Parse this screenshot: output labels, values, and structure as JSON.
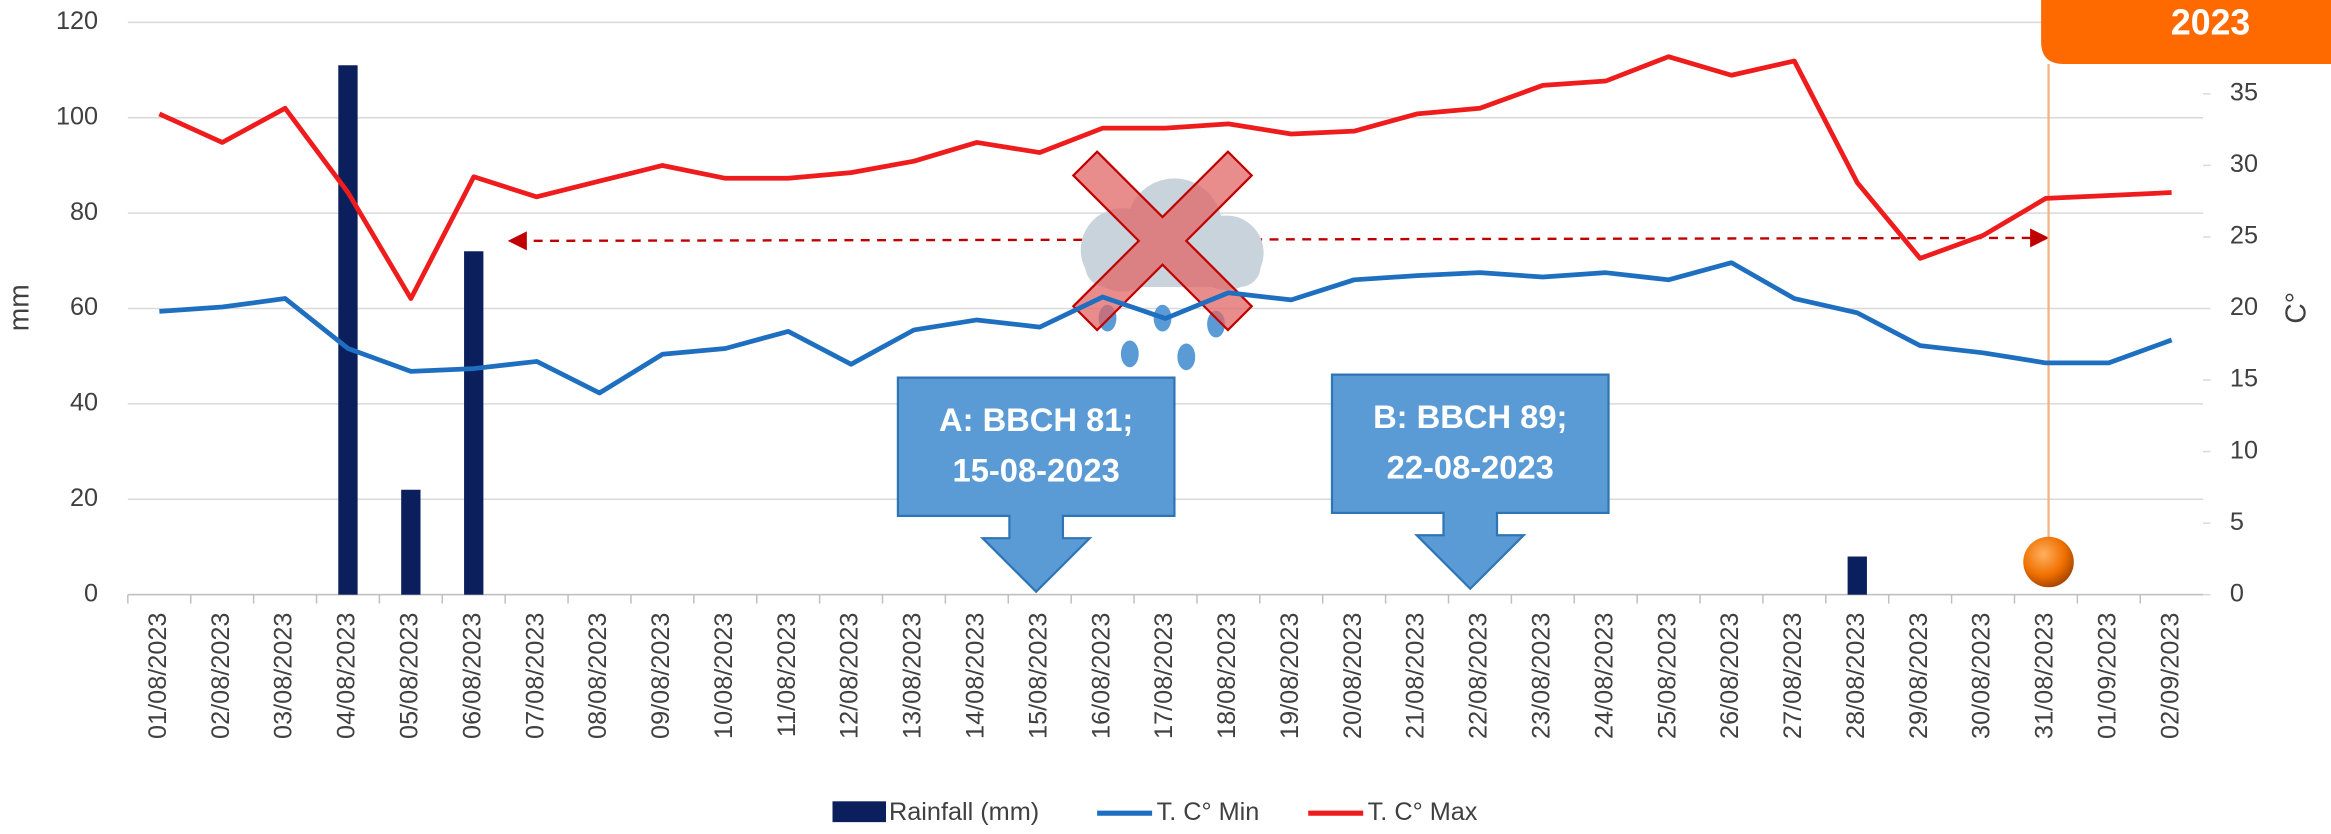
{
  "chart_data": {
    "type": "combo",
    "y_label": "mm",
    "y2_label": "C°",
    "categories": [
      "01/08/2023",
      "02/08/2023",
      "03/08/2023",
      "04/08/2023",
      "05/08/2023",
      "06/08/2023",
      "07/08/2023",
      "08/08/2023",
      "09/08/2023",
      "10/08/2023",
      "11/08/2023",
      "12/08/2023",
      "13/08/2023",
      "14/08/2023",
      "15/08/2023",
      "16/08/2023",
      "17/08/2023",
      "18/08/2023",
      "19/08/2023",
      "20/08/2023",
      "21/08/2023",
      "22/08/2023",
      "23/08/2023",
      "24/08/2023",
      "25/08/2023",
      "26/08/2023",
      "27/08/2023",
      "28/08/2023",
      "29/08/2023",
      "30/08/2023",
      "31/08/2023",
      "01/09/2023",
      "02/09/2023"
    ],
    "series": [
      {
        "name": "Rainfall (mm)",
        "type": "bar",
        "color": "#0b1f5c",
        "values": [
          0,
          0,
          0,
          111,
          22,
          72,
          0,
          0,
          0,
          0,
          0,
          0,
          0,
          0,
          0,
          0,
          0,
          0,
          0,
          0,
          0,
          0,
          0,
          0,
          0,
          0,
          0,
          8,
          0,
          0,
          0,
          0,
          0
        ]
      },
      {
        "name": "T. C° Min",
        "type": "line",
        "axis": "y2",
        "color": "#1f6fc0",
        "values": [
          19.8,
          20.1,
          20.7,
          17.2,
          15.6,
          15.8,
          16.3,
          14.1,
          16.8,
          17.2,
          18.4,
          16.1,
          18.5,
          19.2,
          18.7,
          20.8,
          19.3,
          21.1,
          20.6,
          22,
          22.3,
          22.5,
          22.2,
          22.5,
          22,
          23.2,
          20.7,
          19.7,
          17.4,
          16.9,
          16.2,
          16.2,
          17.8
        ]
      },
      {
        "name": "T. C° Max",
        "type": "line",
        "axis": "y2",
        "color": "#ee1c1c",
        "values": [
          33.6,
          31.6,
          34,
          28.1,
          20.7,
          29.2,
          27.8,
          28.9,
          30,
          29.1,
          29.1,
          29.5,
          30.3,
          31.6,
          30.9,
          32.6,
          32.6,
          32.9,
          32.2,
          32.4,
          33.6,
          34,
          35.6,
          35.9,
          37.6,
          36.3,
          37.3,
          28.8,
          23.5,
          25.1,
          27.7,
          27.9,
          28.1
        ]
      }
    ],
    "ylim": [
      0,
      120
    ],
    "yticks": [
      0,
      20,
      40,
      60,
      80,
      100,
      120
    ],
    "y2lim": [
      0,
      40
    ],
    "y2ticks": [
      0,
      5,
      10,
      15,
      20,
      25,
      30,
      35
    ],
    "grid": true,
    "annotations": [
      {
        "lines": [
          "A: BBCH 81;",
          "15-08-2023"
        ]
      },
      {
        "lines": [
          "B: BBCH 89;",
          "22-08-2023"
        ]
      }
    ],
    "badge": "2023"
  }
}
